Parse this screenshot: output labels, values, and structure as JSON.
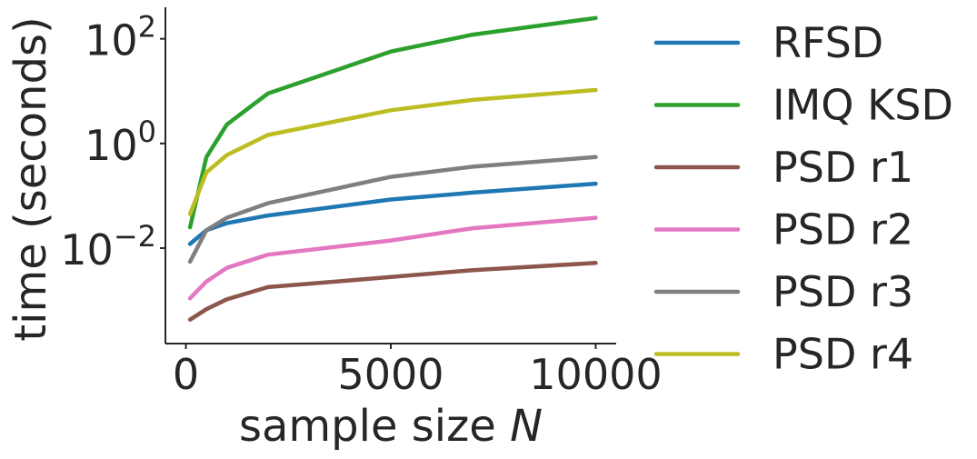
{
  "chart_data": {
    "type": "line",
    "xlabel_prefix": "sample size ",
    "xlabel_var": "N",
    "ylabel": "time (seconds)",
    "yscale": "log",
    "xlim": [
      -500,
      10500
    ],
    "ylim": [
      0.00015,
      400
    ],
    "grid": false,
    "legend_position": "right",
    "xticks": [
      {
        "value": 0,
        "label": "0"
      },
      {
        "value": 5000,
        "label": "5000"
      },
      {
        "value": 10000,
        "label": "10000"
      }
    ],
    "yticks": [
      {
        "value": 0.01,
        "base": "10",
        "exp": "−2"
      },
      {
        "value": 1,
        "base": "10",
        "exp": "0"
      },
      {
        "value": 100,
        "base": "10",
        "exp": "2"
      }
    ],
    "x": [
      100,
      500,
      1000,
      2000,
      5000,
      7000,
      10000
    ],
    "series": [
      {
        "name": "RFSD",
        "color": "#1f77b4",
        "values": [
          0.012,
          0.022,
          0.03,
          0.042,
          0.085,
          0.115,
          0.17
        ]
      },
      {
        "name": "IMQ KSD",
        "color": "#2ca02c",
        "values": [
          0.025,
          0.55,
          2.3,
          9.0,
          57,
          120,
          250
        ]
      },
      {
        "name": "PSD r1",
        "color": "#8c564b",
        "values": [
          0.00043,
          0.00068,
          0.00105,
          0.0018,
          0.0028,
          0.0038,
          0.0052
        ]
      },
      {
        "name": "PSD r2",
        "color": "#e377c2",
        "values": [
          0.0011,
          0.0023,
          0.0042,
          0.0075,
          0.014,
          0.024,
          0.038
        ]
      },
      {
        "name": "PSD r3",
        "color": "#7f7f7f",
        "values": [
          0.0055,
          0.022,
          0.038,
          0.072,
          0.23,
          0.36,
          0.55
        ]
      },
      {
        "name": "PSD r4",
        "color": "#bcbd22",
        "values": [
          0.045,
          0.28,
          0.6,
          1.45,
          4.3,
          6.8,
          10.5
        ]
      }
    ]
  }
}
